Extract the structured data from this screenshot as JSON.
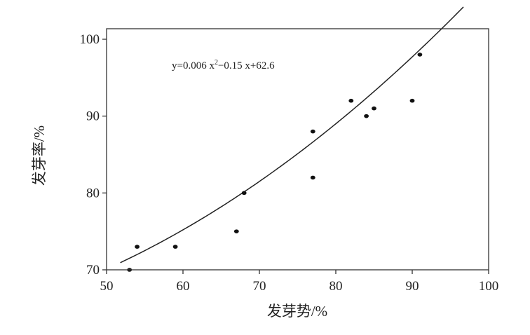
{
  "chart_data": {
    "type": "scatter",
    "title": "",
    "xlabel": "发芽势/%",
    "ylabel": "发芽率/%",
    "xlim": [
      50,
      100
    ],
    "ylim": [
      70,
      100
    ],
    "xticks": [
      50,
      60,
      70,
      80,
      90,
      100
    ],
    "yticks": [
      70,
      80,
      90,
      100
    ],
    "grid": false,
    "series": [
      {
        "points": [
          {
            "x": 53,
            "y": 70
          },
          {
            "x": 54,
            "y": 73
          },
          {
            "x": 59,
            "y": 73
          },
          {
            "x": 67,
            "y": 75
          },
          {
            "x": 68,
            "y": 80
          },
          {
            "x": 77,
            "y": 82
          },
          {
            "x": 77,
            "y": 88
          },
          {
            "x": 82,
            "y": 92
          },
          {
            "x": 84,
            "y": 90
          },
          {
            "x": 85,
            "y": 91
          },
          {
            "x": 90,
            "y": 92
          },
          {
            "x": 91,
            "y": 98
          }
        ]
      }
    ],
    "fit": {
      "a": 0.006,
      "b": -0.15,
      "c": 62.6,
      "x_range": [
        51.8,
        96.7
      ]
    },
    "annotation": {
      "prefix": "y=0.006 x",
      "sup": "2",
      "suffix": "−0.15 x+62.6"
    }
  }
}
